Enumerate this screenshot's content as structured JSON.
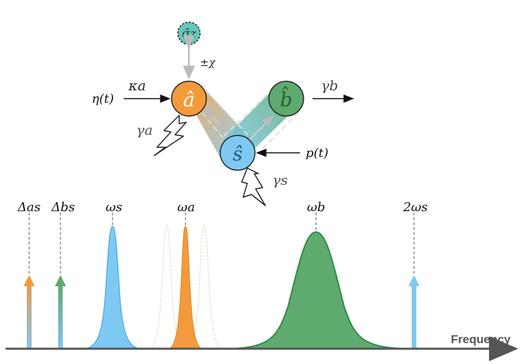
{
  "colors": {
    "orange": "#f39a3c",
    "green": "#5faa6e",
    "blue": "#7ec9f3",
    "teal": "#63c6bd",
    "dark_green": "#2e8b4a",
    "gray": "#8a8a8a",
    "axis": "#555555"
  },
  "diagram": {
    "mode_a": "â",
    "mode_b": "b̂",
    "mode_s": "ŝ",
    "qubit": "σ̂z",
    "coupling_chi": "±χ",
    "drive_eta": "η(t)",
    "kappa_a": "κa",
    "gamma_b": "γb",
    "gamma_a": "γa",
    "gamma_s": "γs",
    "pump_p": "p(t)"
  },
  "spectrum": {
    "axis_label": "Frequency",
    "markers": [
      "Δas",
      "Δbs",
      "ωs",
      "ωa",
      "ωb",
      "2ωs"
    ]
  }
}
